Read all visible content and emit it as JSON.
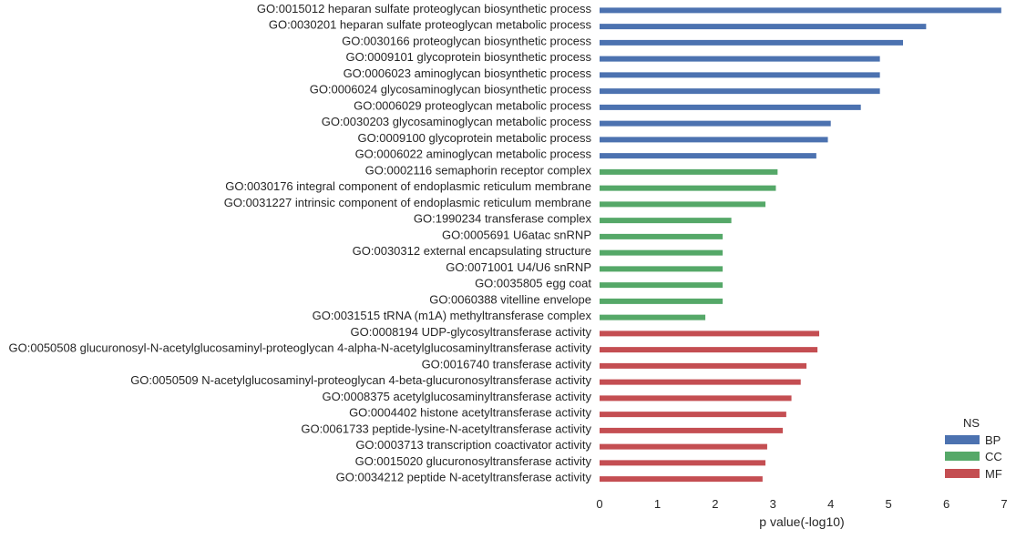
{
  "colors": {
    "BP": "#4c72b0",
    "CC": "#55a868",
    "MF": "#c44e52"
  },
  "chart_data": {
    "type": "bar",
    "orientation": "horizontal",
    "title": "",
    "xlabel": "p value(-log10)",
    "ylabel": "",
    "xlim": [
      0,
      7
    ],
    "x_ticks": [
      "0",
      "1",
      "2",
      "3",
      "4",
      "5",
      "6",
      "7"
    ],
    "grid": false,
    "legend": {
      "title": "NS",
      "placement": "bottom-right",
      "entries": [
        "BP",
        "CC",
        "MF"
      ]
    },
    "categories": [
      "GO:0015012 heparan sulfate proteoglycan biosynthetic process",
      "GO:0030201 heparan sulfate proteoglycan metabolic process",
      "GO:0030166 proteoglycan biosynthetic process",
      "GO:0009101 glycoprotein biosynthetic process",
      "GO:0006023 aminoglycan biosynthetic process",
      "GO:0006024 glycosaminoglycan biosynthetic process",
      "GO:0006029 proteoglycan metabolic process",
      "GO:0030203 glycosaminoglycan metabolic process",
      "GO:0009100 glycoprotein metabolic process",
      "GO:0006022 aminoglycan metabolic process",
      "GO:0002116 semaphorin receptor complex",
      "GO:0030176 integral component of endoplasmic reticulum membrane",
      "GO:0031227 intrinsic component of endoplasmic reticulum membrane",
      "GO:1990234 transferase complex",
      "GO:0005691 U6atac snRNP",
      "GO:0030312 external encapsulating structure",
      "GO:0071001 U4/U6 snRNP",
      "GO:0035805 egg coat",
      "GO:0060388 vitelline envelope",
      "GO:0031515 tRNA (m1A) methyltransferase complex",
      "GO:0008194 UDP-glycosyltransferase activity",
      "GO:0050508 glucuronosyl-N-acetylglucosaminyl-proteoglycan 4-alpha-N-acetylglucosaminyltransferase activity",
      "GO:0016740 transferase activity",
      "GO:0050509 N-acetylglucosaminyl-proteoglycan 4-beta-glucuronosyltransferase activity",
      "GO:0008375 acetylglucosaminyltransferase activity",
      "GO:0004402 histone acetyltransferase activity",
      "GO:0061733 peptide-lysine-N-acetyltransferase activity",
      "GO:0003713 transcription coactivator activity",
      "GO:0015020 glucuronosyltransferase activity",
      "GO:0034212 peptide N-acetyltransferase activity"
    ],
    "values": [
      6.95,
      5.65,
      5.25,
      4.85,
      4.85,
      4.85,
      4.52,
      4.0,
      3.95,
      3.75,
      3.08,
      3.05,
      2.87,
      2.28,
      2.13,
      2.13,
      2.13,
      2.13,
      2.13,
      1.83,
      3.8,
      3.77,
      3.58,
      3.48,
      3.32,
      3.23,
      3.17,
      2.9,
      2.87,
      2.82
    ],
    "groups": [
      "BP",
      "BP",
      "BP",
      "BP",
      "BP",
      "BP",
      "BP",
      "BP",
      "BP",
      "BP",
      "CC",
      "CC",
      "CC",
      "CC",
      "CC",
      "CC",
      "CC",
      "CC",
      "CC",
      "CC",
      "MF",
      "MF",
      "MF",
      "MF",
      "MF",
      "MF",
      "MF",
      "MF",
      "MF",
      "MF"
    ]
  }
}
